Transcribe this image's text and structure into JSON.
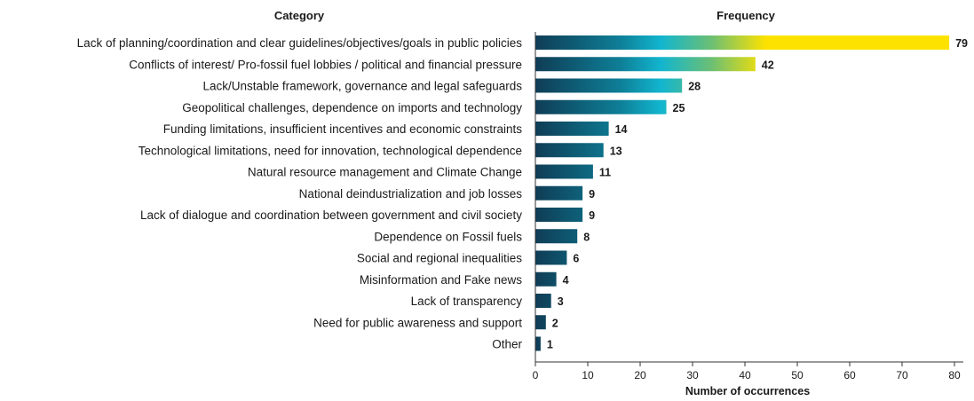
{
  "chart_data": {
    "type": "bar",
    "orientation": "horizontal",
    "category_header": "Category",
    "value_header": "Frequency",
    "xlabel": "Number of occurrences",
    "xlim": [
      0,
      80
    ],
    "xticks": [
      0,
      10,
      20,
      30,
      40,
      50,
      60,
      70,
      80
    ],
    "grid": false,
    "categories": [
      "Lack of planning/coordination and clear guidelines/objectives/goals in public policies",
      "Conflicts of interest/ Pro-fossil fuel lobbies / political and financial pressure",
      "Lack/Unstable framework, governance and legal safeguards",
      "Geopolitical challenges, dependence on imports and technology",
      "Funding limitations, insufficient incentives and economic constraints",
      "Technological limitations, need for innovation, technological dependence",
      "Natural resource management and Climate Change",
      "National deindustrialization and job losses",
      "Lack of dialogue and coordination between government and civil society",
      "Dependence on Fossil fuels",
      "Social and regional inequalities",
      "Misinformation and Fake news",
      "Lack of transparency",
      "Need for public awareness and support",
      "Other"
    ],
    "values": [
      79,
      42,
      28,
      25,
      14,
      13,
      11,
      9,
      9,
      8,
      6,
      4,
      3,
      2,
      1
    ],
    "gradient_colors": [
      "#0f3d56",
      "#0e7e96",
      "#12b5cf",
      "#6cbf74",
      "#fde200"
    ]
  }
}
